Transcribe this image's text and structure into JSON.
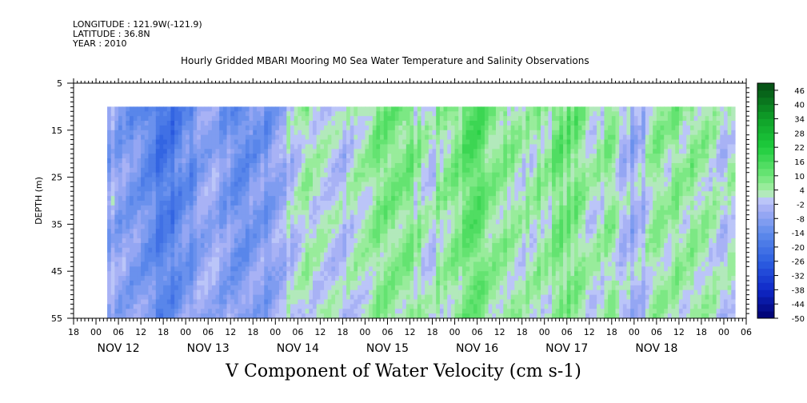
{
  "header": {
    "longitude": "LONGITUDE : 121.9W(-121.9)",
    "latitude": "LATITUDE : 36.8N",
    "year": "YEAR : 2010",
    "title": "Hourly Gridded MBARI Mooring M0 Sea Water Temperature and Salinity Observations"
  },
  "caption": "V Component of Water Velocity (cm s-1)",
  "chart_data": {
    "type": "heatmap",
    "title": "Hourly Gridded MBARI Mooring M0 Sea Water Temperature and Salinity Observations",
    "xlabel": "",
    "ylabel": "DEPTH (m)",
    "colorbar_label": "V Component of Water Velocity (cm s-1)",
    "ylim": [
      55,
      5
    ],
    "y_ticks": [
      5,
      15,
      25,
      35,
      45,
      55
    ],
    "x_start": "NOV 11 18:00",
    "x_end": "NOV 19 06:00",
    "x_hour_ticks": [
      "00",
      "06",
      "12",
      "18"
    ],
    "day_labels": [
      "NOV 12",
      "NOV 13",
      "NOV 14",
      "NOV 15",
      "NOV 16",
      "NOV 17",
      "NOV 18"
    ],
    "data_start": "NOV 12 03:00",
    "data_end": "NOV 19 03:00",
    "data_depth_range": [
      10,
      55
    ],
    "colorbar_ticks": [
      46,
      40,
      34,
      28,
      22,
      16,
      10,
      4,
      -2,
      -8,
      -14,
      -20,
      -26,
      -32,
      -38,
      -44,
      -50
    ],
    "colorbar_range": [
      -50,
      49
    ],
    "colorbar_step": 3,
    "time_profile": [
      {
        "time": "NOV 12 03:00",
        "v": -6
      },
      {
        "time": "NOV 12 12:00",
        "v": -14
      },
      {
        "time": "NOV 12 18:00",
        "v": -22
      },
      {
        "time": "NOV 13 00:00",
        "v": -16
      },
      {
        "time": "NOV 13 06:00",
        "v": -8
      },
      {
        "time": "NOV 13 12:00",
        "v": -12
      },
      {
        "time": "NOV 13 18:00",
        "v": -14
      },
      {
        "time": "NOV 14 00:00",
        "v": -8
      },
      {
        "time": "NOV 14 06:00",
        "v": 2
      },
      {
        "time": "NOV 14 12:00",
        "v": 4
      },
      {
        "time": "NOV 14 18:00",
        "v": -2
      },
      {
        "time": "NOV 15 00:00",
        "v": 3
      },
      {
        "time": "NOV 15 06:00",
        "v": 10
      },
      {
        "time": "NOV 15 12:00",
        "v": 8
      },
      {
        "time": "NOV 15 18:00",
        "v": 2
      },
      {
        "time": "NOV 16 00:00",
        "v": 9
      },
      {
        "time": "NOV 16 06:00",
        "v": 12
      },
      {
        "time": "NOV 16 12:00",
        "v": 10
      },
      {
        "time": "NOV 16 18:00",
        "v": 2
      },
      {
        "time": "NOV 17 00:00",
        "v": 6
      },
      {
        "time": "NOV 17 06:00",
        "v": 11
      },
      {
        "time": "NOV 17 12:00",
        "v": 4
      },
      {
        "time": "NOV 17 18:00",
        "v": 6
      },
      {
        "time": "NOV 18 00:00",
        "v": -6
      },
      {
        "time": "NOV 18 06:00",
        "v": 4
      },
      {
        "time": "NOV 18 12:00",
        "v": 6
      },
      {
        "time": "NOV 18 18:00",
        "v": 5
      },
      {
        "time": "NOV 19 03:00",
        "v": -2
      }
    ]
  }
}
